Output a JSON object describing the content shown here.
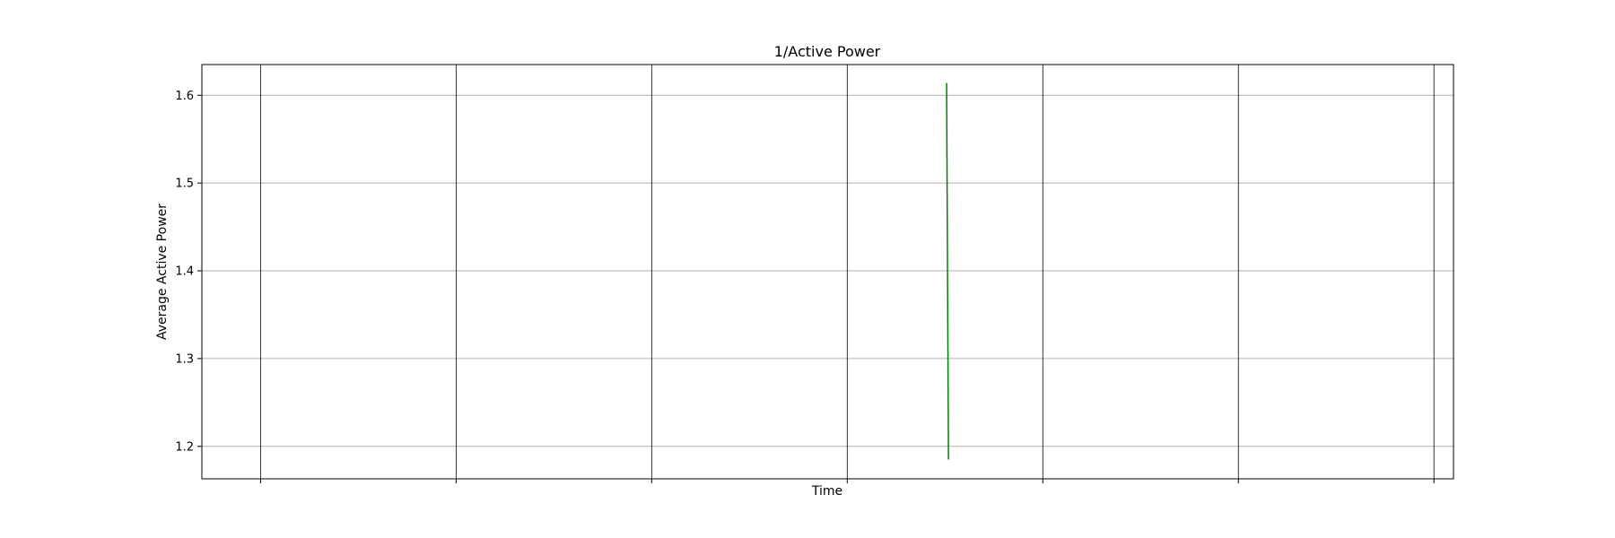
{
  "chart_data": {
    "type": "line",
    "title": "1/Active Power",
    "xlabel": "Time",
    "ylabel": "Average Active Power",
    "ylim": [
      1.163,
      1.635
    ],
    "xlim": [
      0,
      1
    ],
    "y_ticks": [
      1.2,
      1.3,
      1.4,
      1.5,
      1.6
    ],
    "y_tick_labels": [
      "1.2",
      "1.3",
      "1.4",
      "1.5",
      "1.6"
    ],
    "x_tick_count": 7,
    "x_tick_labels_visible": false,
    "grid": {
      "horizontal": true,
      "horizontal_color": "#b0b0b0",
      "vertical": true,
      "vertical_color": "#000000"
    },
    "series": [
      {
        "color": "#008000",
        "points": [
          {
            "x": 0.595,
            "y": 1.614
          },
          {
            "x": 0.5965,
            "y": 1.185
          }
        ]
      }
    ]
  }
}
